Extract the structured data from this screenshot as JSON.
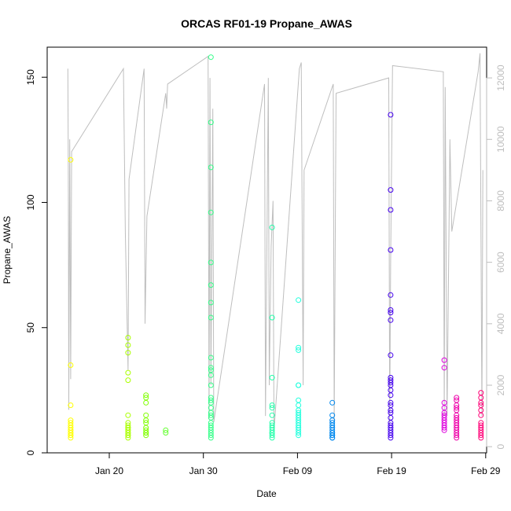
{
  "chart_data": {
    "type": "scatter",
    "title": "ORCAS RF01-19 Propane_AWAS",
    "xlabel": "Date",
    "ylabel": "Propane_AWAS",
    "x_ticks": [
      "Jan 20",
      "Jan 30",
      "Feb 09",
      "Feb 19",
      "Feb 29"
    ],
    "y_ticks": [
      0,
      50,
      100,
      150
    ],
    "y2_ticks": [
      0,
      2000,
      4000,
      6000,
      8000,
      10000,
      12000
    ],
    "xlim": [
      13.4,
      60.1
    ],
    "ylim": [
      0,
      162
    ],
    "y2lim": [
      -200,
      13000
    ],
    "grid": false,
    "axis_color": "#000000",
    "altitude_color": "#bebebe",
    "flights": [
      {
        "x": 15.9,
        "color": "#ffff00",
        "values": [
          117,
          35,
          19,
          13,
          12,
          11,
          10,
          9,
          9,
          8,
          8,
          7,
          7,
          6
        ]
      },
      {
        "x": 22.0,
        "color": "#aaff00",
        "values": [
          46,
          43,
          40,
          32,
          29,
          15,
          12,
          11,
          10,
          10,
          9,
          9,
          8,
          8,
          7,
          7,
          6
        ]
      },
      {
        "x": 23.9,
        "color": "#80ff00",
        "values": [
          23,
          22,
          20,
          15,
          13,
          12,
          10,
          9,
          8,
          8,
          7
        ]
      },
      {
        "x": 26.0,
        "color": "#66ff33",
        "values": [
          9,
          8
        ]
      },
      {
        "x": 30.8,
        "color": "#33ff88",
        "values": [
          158,
          132,
          114,
          96,
          76,
          67,
          60,
          54,
          38,
          34,
          33,
          31,
          27,
          22,
          21,
          20,
          18,
          16,
          15,
          14,
          12,
          11,
          10,
          9,
          8,
          7,
          6
        ]
      },
      {
        "x": 37.3,
        "color": "#22ffaa",
        "values": [
          90,
          54,
          30,
          19,
          18,
          15,
          12,
          11,
          10,
          9,
          8,
          8,
          7,
          6
        ]
      },
      {
        "x": 40.1,
        "color": "#22ffdd",
        "values": [
          61,
          42,
          41,
          27,
          27,
          21,
          19,
          17,
          16,
          15,
          14,
          13,
          12,
          11,
          10,
          9,
          8,
          7
        ]
      },
      {
        "x": 43.7,
        "color": "#0088ee",
        "values": [
          20,
          15,
          13,
          12,
          11,
          10,
          9,
          8,
          8,
          7,
          7,
          6,
          6
        ]
      },
      {
        "x": 49.9,
        "color": "#4400ee",
        "values": [
          135,
          105,
          97,
          81,
          63,
          57,
          56,
          53,
          39,
          30,
          29,
          28,
          27,
          25,
          23,
          20,
          19,
          17,
          16,
          14,
          12,
          11,
          10,
          9,
          8,
          7,
          6
        ]
      },
      {
        "x": 55.6,
        "color": "#dd00dd",
        "values": [
          37,
          34,
          20,
          18,
          16,
          15,
          14,
          13,
          12,
          11,
          10,
          9
        ]
      },
      {
        "x": 56.9,
        "color": "#ee00aa",
        "values": [
          22,
          21,
          19,
          18,
          17,
          15,
          14,
          13,
          12,
          11,
          10,
          9,
          8,
          7,
          6
        ]
      },
      {
        "x": 59.5,
        "color": "#ff0077",
        "values": [
          24,
          22,
          20,
          19,
          17,
          15,
          12,
          11,
          10,
          9,
          8,
          7,
          6
        ]
      }
    ],
    "altitude_path": [
      [
        15.6,
        12300
      ],
      [
        15.65,
        9000
      ],
      [
        15.7,
        1200
      ],
      [
        15.8,
        10000
      ],
      [
        15.9,
        2200
      ],
      [
        16.0,
        9600
      ],
      [
        21.5,
        12300
      ],
      [
        21.7,
        7000
      ],
      [
        22.0,
        2500
      ],
      [
        22.1,
        8700
      ],
      [
        23.7,
        12300
      ],
      [
        23.8,
        4000
      ],
      [
        24.0,
        7500
      ],
      [
        26.0,
        11500
      ],
      [
        26.1,
        11000
      ],
      [
        26.2,
        11800
      ],
      [
        30.5,
        12700
      ],
      [
        30.6,
        900
      ],
      [
        30.7,
        12000
      ],
      [
        30.8,
        2000
      ],
      [
        31.0,
        11000
      ],
      [
        31.1,
        800
      ],
      [
        36.5,
        11800
      ],
      [
        36.6,
        1000
      ],
      [
        36.9,
        12000
      ],
      [
        37.0,
        2000
      ],
      [
        37.2,
        6500
      ],
      [
        37.4,
        8000
      ],
      [
        37.5,
        500
      ],
      [
        40.2,
        12300
      ],
      [
        40.4,
        12500
      ],
      [
        40.6,
        2000
      ],
      [
        40.7,
        9000
      ],
      [
        43.8,
        11800
      ],
      [
        43.9,
        800
      ],
      [
        44.1,
        11500
      ],
      [
        49.7,
        12000
      ],
      [
        49.8,
        700
      ],
      [
        49.9,
        6000
      ],
      [
        50.1,
        12400
      ],
      [
        55.5,
        12200
      ],
      [
        55.6,
        1000
      ],
      [
        55.7,
        11700
      ],
      [
        55.9,
        1000
      ],
      [
        56.2,
        10000
      ],
      [
        56.4,
        7000
      ],
      [
        59.2,
        12200
      ],
      [
        59.4,
        12800
      ],
      [
        59.6,
        1000
      ],
      [
        59.7,
        9000
      ]
    ],
    "legend": "none"
  }
}
